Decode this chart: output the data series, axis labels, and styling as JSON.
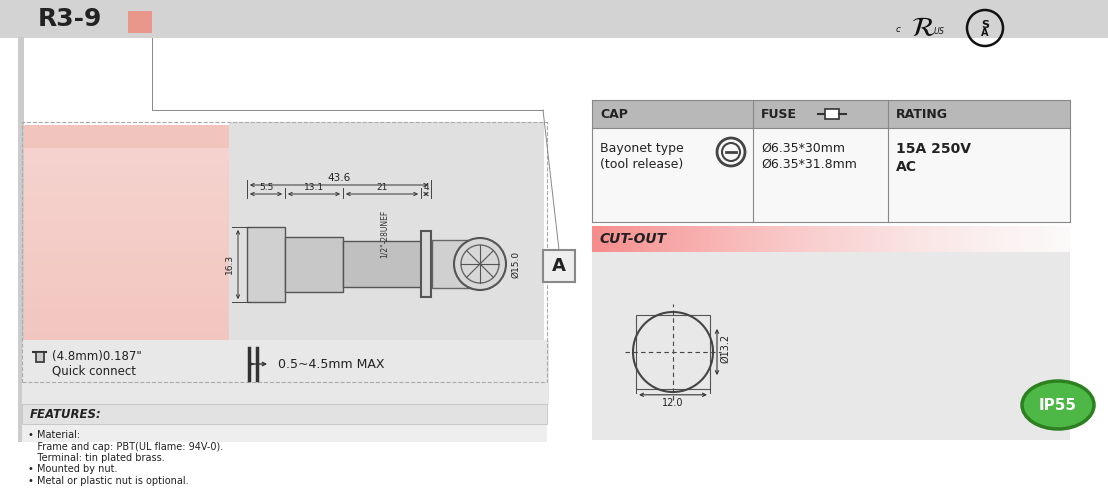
{
  "bg_color": "#ffffff",
  "header_bar_color": "#d3d3d3",
  "model": "R3-9",
  "title_swatch_color": "#e8978a",
  "dim_43_6": "43.6",
  "dim_5_5": "5.5",
  "dim_13_1": "13.1",
  "dim_21": "21",
  "dim_4": "4",
  "dim_16_3": "16.3",
  "dim_15_0": "Ø15.0",
  "dim_thread": "1/2\"-28UNEF",
  "label_A": "A",
  "terminal_text": "(4.8mm)0.187\"",
  "connect_text": "Quick connect",
  "panel_text": "0.5~4.5mm MAX",
  "features_title": "FEATURES:",
  "features_lines": [
    "• Material:",
    "   Frame and cap: PBT(UL flame: 94V-0).",
    "   Terminal: tin plated brass.",
    "• Mounted by nut.",
    "• Metal or plastic nut is optional."
  ],
  "cap_header": "CAP",
  "fuse_header": "FUSE",
  "rating_header": "RATING",
  "cap_value1": "Bayonet type",
  "cap_value2": "(tool release)",
  "fuse_value1": "Ø6.35*30mm",
  "fuse_value2": "Ø6.35*31.8mm",
  "rating_value1": "15A 250V",
  "rating_value2": "AC",
  "cutout_label": "CUT-OUT",
  "cutout_dia": "Ø13.2",
  "cutout_width": "12.0",
  "ip_rating": "IP55"
}
